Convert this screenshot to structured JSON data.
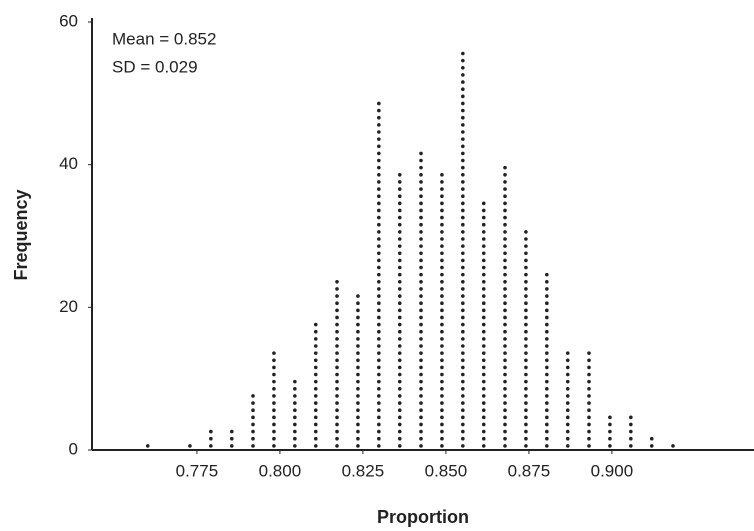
{
  "chart_data": {
    "type": "dot",
    "x_label": "Proportion",
    "y_label": "Frequency",
    "annotations": [
      "Mean = 0.852",
      "SD = 0.029"
    ],
    "x": [
      0.7602,
      0.7729,
      0.7792,
      0.7855,
      0.7919,
      0.7982,
      0.8045,
      0.8108,
      0.8172,
      0.8235,
      0.8298,
      0.8361,
      0.8425,
      0.8488,
      0.8551,
      0.8614,
      0.8678,
      0.8741,
      0.8804,
      0.8867,
      0.8931,
      0.8994,
      0.9057,
      0.912,
      0.9184
    ],
    "values": [
      1,
      1,
      3,
      3,
      8,
      14,
      10,
      18,
      24,
      22,
      49,
      39,
      42,
      39,
      56,
      35,
      40,
      31,
      25,
      14,
      14,
      5,
      5,
      2,
      1
    ],
    "color": "#222222",
    "xlim": [
      0.7434,
      0.9428
    ],
    "xticks": [
      0.775,
      {
        "value": 0.8,
        "label": "0.800"
      },
      0.825,
      {
        "value": 0.85,
        "label": "0.850"
      },
      0.875,
      {
        "value": 0.9,
        "label": "0.900"
      }
    ],
    "ylim": [
      0,
      60
    ],
    "yticks": [
      0,
      20,
      40,
      60
    ]
  }
}
